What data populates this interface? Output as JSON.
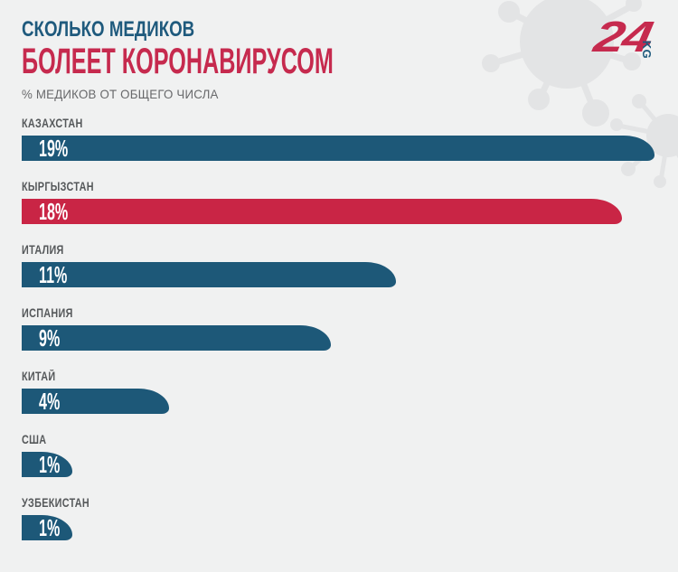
{
  "logo": {
    "number": "24",
    "suffix": "KG"
  },
  "header": {
    "title_line1": "СКОЛЬКО МЕДИКОВ",
    "title_line2": "БОЛЕЕТ КОРОНАВИРУСОМ",
    "subtitle": "% МЕДИКОВ ОТ ОБЩЕГО ЧИСЛА"
  },
  "colors": {
    "background": "#f0f1f1",
    "watermark": "#e3e4e5",
    "bar_blue": "#1d5878",
    "bar_red": "#c92545",
    "title_blue": "#1f5a7d",
    "title_red": "#c62a4e",
    "label_gray": "#55585a",
    "subtitle_gray": "#68696b",
    "value_text": "#ffffff"
  },
  "chart_data": {
    "type": "bar",
    "orientation": "horizontal",
    "title": "СКОЛЬКО МЕДИКОВ БОЛЕЕТ КОРОНАВИРУСОМ",
    "subtitle": "% МЕДИКОВ ОТ ОБЩЕГО ЧИСЛА",
    "categories": [
      "КАЗАХСТАН",
      "КЫРГЫЗСТАН",
      "ИТАЛИЯ",
      "ИСПАНИЯ",
      "КИТАЙ",
      "США",
      "УЗБЕКИСТАН"
    ],
    "values": [
      19,
      18,
      11,
      9,
      4,
      1,
      1
    ],
    "value_labels": [
      "19%",
      "18%",
      "11%",
      "9%",
      "4%",
      "1%",
      "1%"
    ],
    "unit": "%",
    "highlight_index": 1,
    "highlight_category": "КЫРГЫЗСТАН",
    "xlim": [
      0,
      19.5
    ],
    "grid": false,
    "legend": false
  }
}
